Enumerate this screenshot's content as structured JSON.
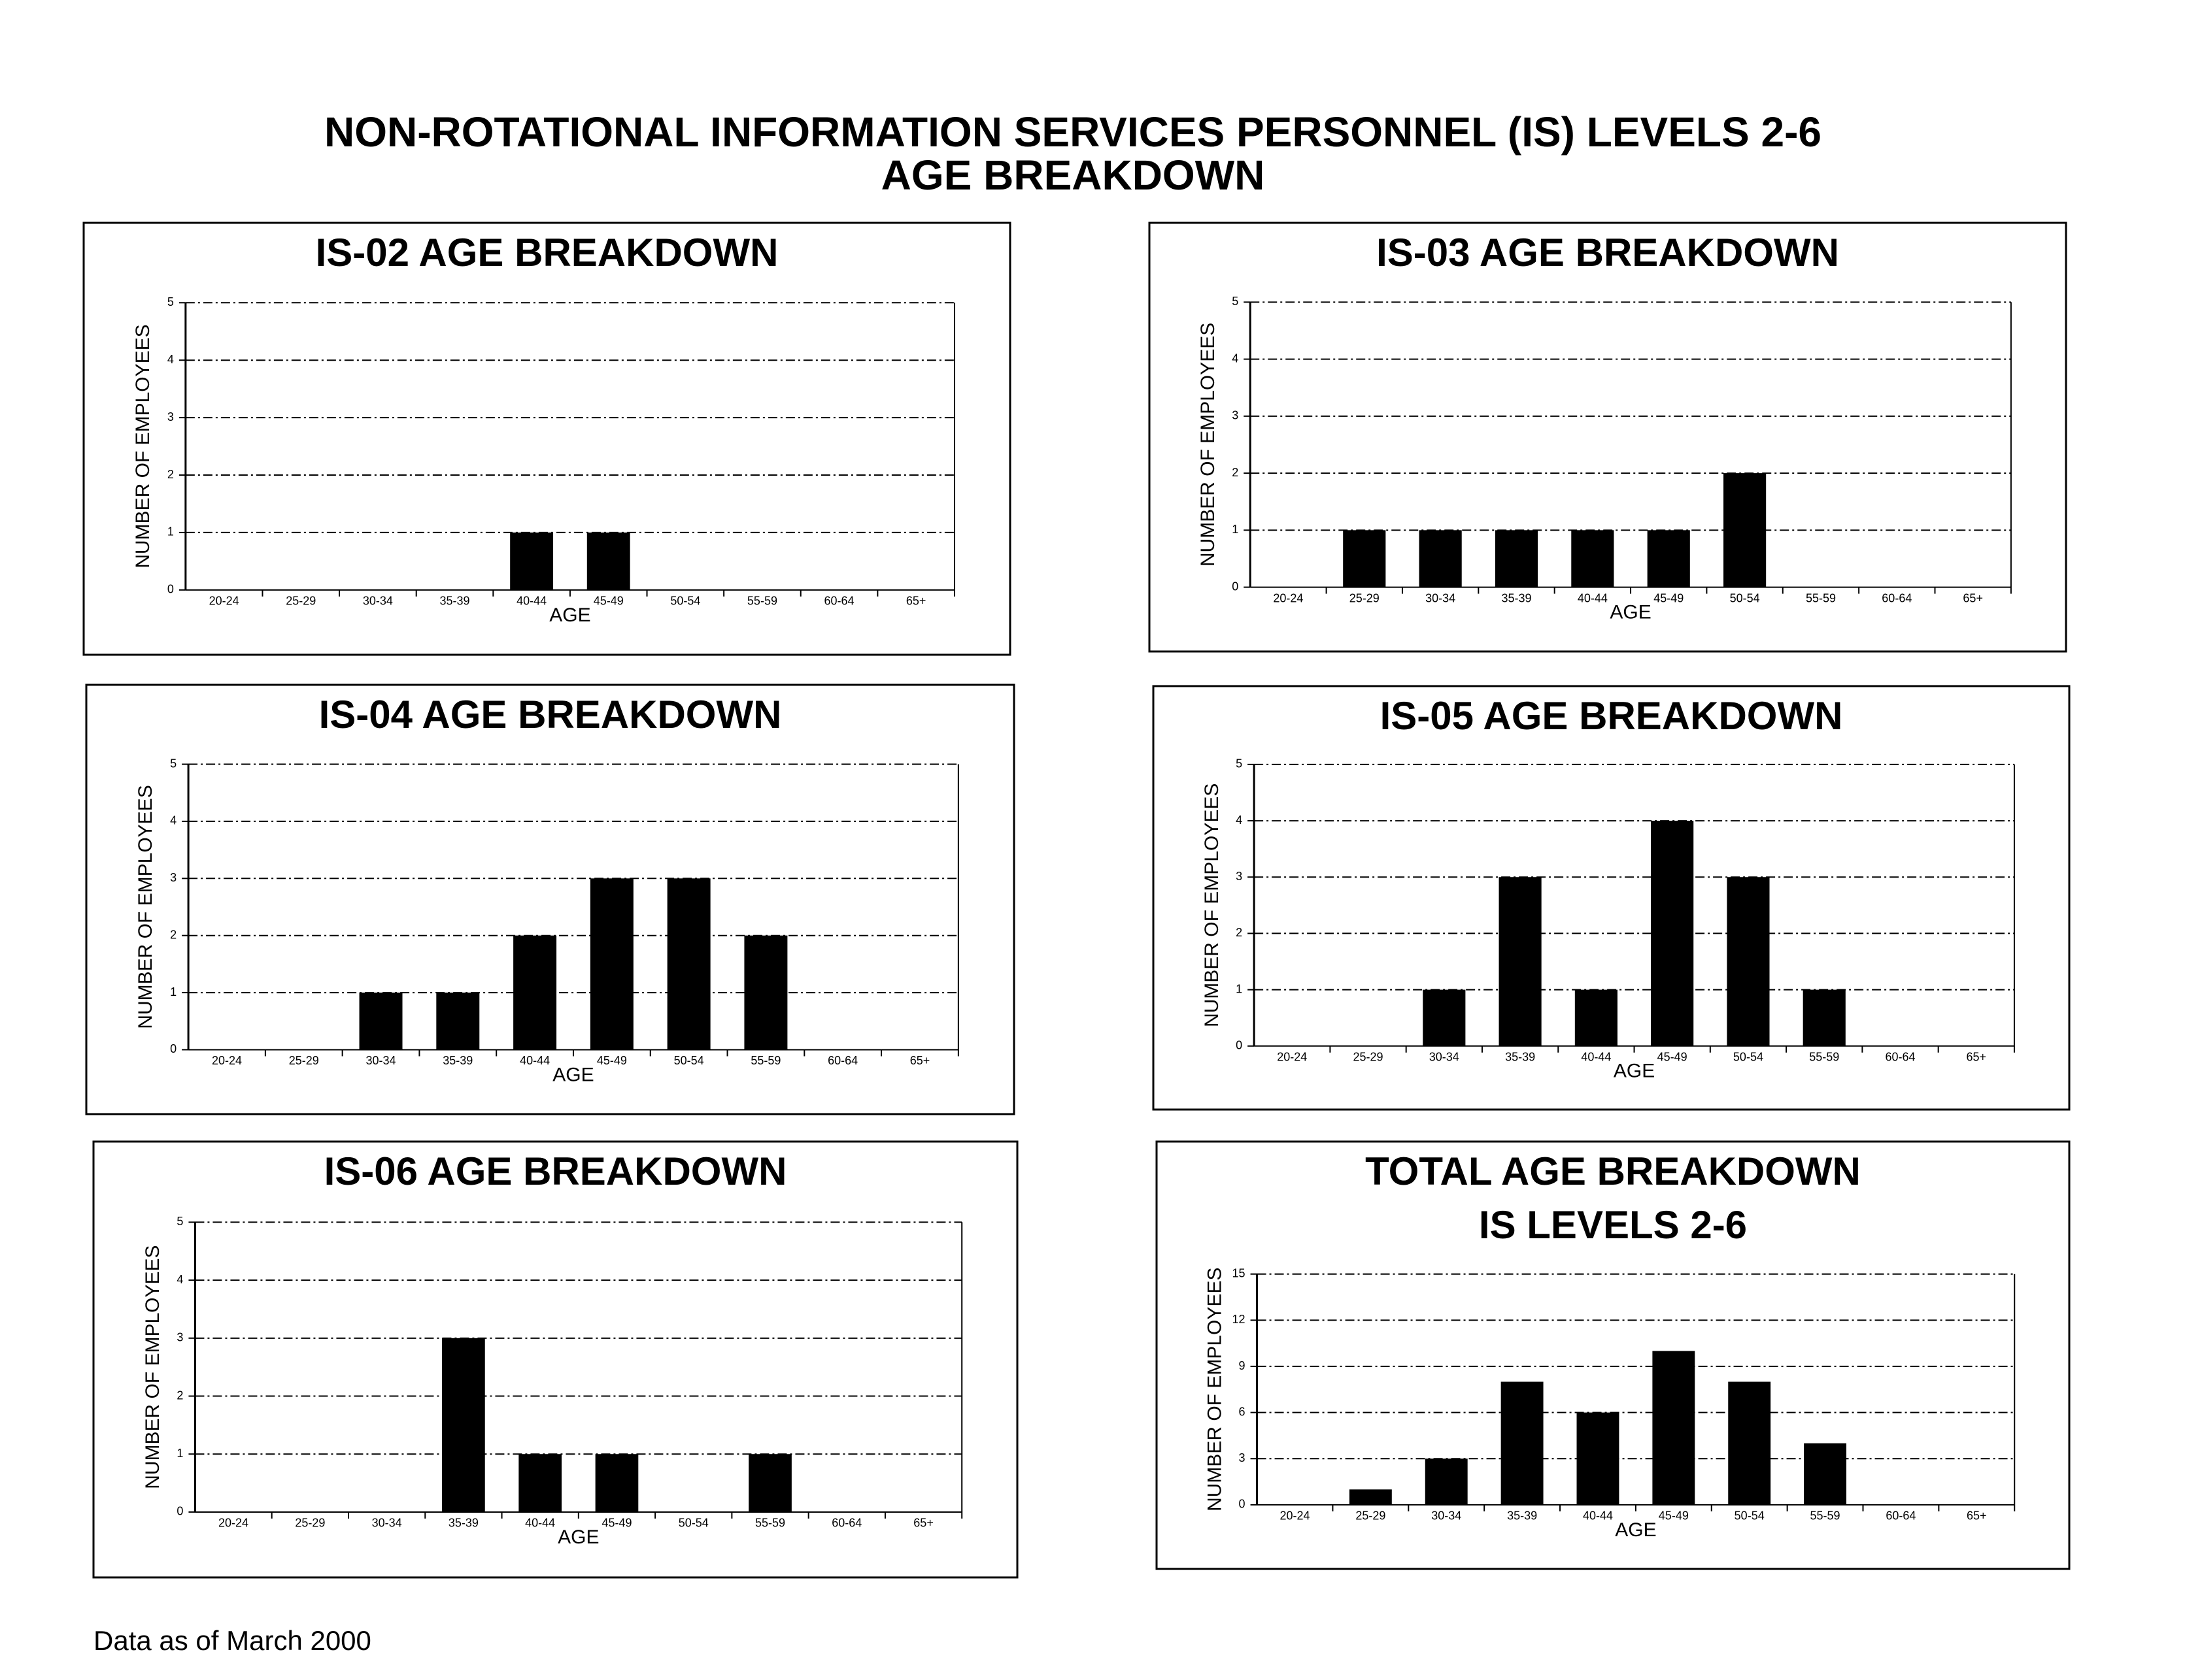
{
  "header": {
    "title_line1": "NON-ROTATIONAL INFORMATION SERVICES PERSONNEL (IS) LEVELS 2-6",
    "title_line2": "AGE BREAKDOWN"
  },
  "footer": "Data as of March 2000",
  "chart_data": [
    {
      "type": "bar",
      "title": "IS-02 AGE BREAKDOWN",
      "x_label": "AGE",
      "y_label": "NUMBER OF EMPLOYEES",
      "categories": [
        "20-24",
        "25-29",
        "30-34",
        "35-39",
        "40-44",
        "45-49",
        "50-54",
        "55-59",
        "60-64",
        "65+"
      ],
      "values": [
        0,
        0,
        0,
        0,
        1,
        1,
        0,
        0,
        0,
        0
      ],
      "color": "#000000",
      "ylim": [
        0,
        5
      ],
      "yticks": [
        0,
        1,
        2,
        3,
        4,
        5
      ],
      "grid": true
    },
    {
      "type": "bar",
      "title": "IS-03 AGE BREAKDOWN",
      "x_label": "AGE",
      "y_label": "NUMBER OF EMPLOYEES",
      "categories": [
        "20-24",
        "25-29",
        "30-34",
        "35-39",
        "40-44",
        "45-49",
        "50-54",
        "55-59",
        "60-64",
        "65+"
      ],
      "values": [
        0,
        1,
        1,
        1,
        1,
        1,
        2,
        0,
        0,
        0
      ],
      "color": "#000000",
      "ylim": [
        0,
        5
      ],
      "yticks": [
        0,
        1,
        2,
        3,
        4,
        5
      ],
      "grid": true
    },
    {
      "type": "bar",
      "title": "IS-04 AGE BREAKDOWN",
      "x_label": "AGE",
      "y_label": "NUMBER OF EMPLOYEES",
      "categories": [
        "20-24",
        "25-29",
        "30-34",
        "35-39",
        "40-44",
        "45-49",
        "50-54",
        "55-59",
        "60-64",
        "65+"
      ],
      "values": [
        0,
        0,
        1,
        1,
        2,
        3,
        3,
        2,
        0,
        0
      ],
      "color": "#000000",
      "ylim": [
        0,
        5
      ],
      "yticks": [
        0,
        1,
        2,
        3,
        4,
        5
      ],
      "grid": true
    },
    {
      "type": "bar",
      "title": "IS-05 AGE BREAKDOWN",
      "x_label": "AGE",
      "y_label": "NUMBER OF EMPLOYEES",
      "categories": [
        "20-24",
        "25-29",
        "30-34",
        "35-39",
        "40-44",
        "45-49",
        "50-54",
        "55-59",
        "60-64",
        "65+"
      ],
      "values": [
        0,
        0,
        1,
        3,
        1,
        4,
        3,
        1,
        0,
        0
      ],
      "color": "#000000",
      "ylim": [
        0,
        5
      ],
      "yticks": [
        0,
        1,
        2,
        3,
        4,
        5
      ],
      "grid": true
    },
    {
      "type": "bar",
      "title": "IS-06 AGE BREAKDOWN",
      "x_label": "AGE",
      "y_label": "NUMBER OF EMPLOYEES",
      "categories": [
        "20-24",
        "25-29",
        "30-34",
        "35-39",
        "40-44",
        "45-49",
        "50-54",
        "55-59",
        "60-64",
        "65+"
      ],
      "values": [
        0,
        0,
        0,
        3,
        1,
        1,
        0,
        1,
        0,
        0
      ],
      "color": "#000000",
      "ylim": [
        0,
        5
      ],
      "yticks": [
        0,
        1,
        2,
        3,
        4,
        5
      ],
      "grid": true
    },
    {
      "type": "bar",
      "title": "TOTAL AGE BREAKDOWN",
      "subtitle": "IS LEVELS 2-6",
      "x_label": "AGE",
      "y_label": "NUMBER OF EMPLOYEES",
      "categories": [
        "20-24",
        "25-29",
        "30-34",
        "35-39",
        "40-44",
        "45-49",
        "50-54",
        "55-59",
        "60-64",
        "65+"
      ],
      "values": [
        0,
        1,
        3,
        8,
        6,
        10,
        8,
        4,
        0,
        0
      ],
      "color": "#000000",
      "ylim": [
        0,
        15
      ],
      "yticks": [
        0,
        3,
        6,
        9,
        12,
        15
      ],
      "grid": true
    }
  ]
}
